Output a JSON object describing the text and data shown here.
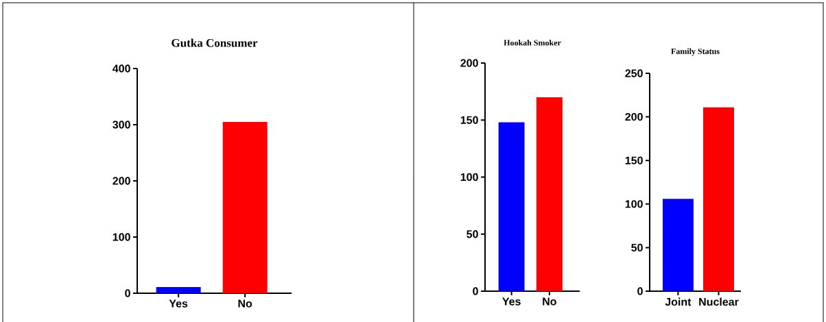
{
  "chart_data": [
    {
      "type": "bar",
      "title": "Gutka Consumer",
      "categories": [
        "Yes",
        "No"
      ],
      "values": [
        11,
        305
      ],
      "colors": [
        "#0000ff",
        "#ff0000"
      ],
      "ylim": [
        0,
        400
      ],
      "yticks": [
        0,
        100,
        200,
        300,
        400
      ],
      "grid": false
    },
    {
      "type": "bar",
      "title": "Hookah Smoker",
      "categories": [
        "Yes",
        "No"
      ],
      "values": [
        148,
        170
      ],
      "colors": [
        "#0000ff",
        "#ff0000"
      ],
      "ylim": [
        0,
        200
      ],
      "yticks": [
        0,
        50,
        100,
        150,
        200
      ],
      "grid": false
    },
    {
      "type": "bar",
      "title": "Family Status",
      "categories": [
        "Joint",
        "Nuclear"
      ],
      "values": [
        106,
        211
      ],
      "colors": [
        "#0000ff",
        "#ff0000"
      ],
      "ylim": [
        0,
        250
      ],
      "yticks": [
        0,
        50,
        100,
        150,
        200,
        250
      ],
      "grid": false
    }
  ]
}
